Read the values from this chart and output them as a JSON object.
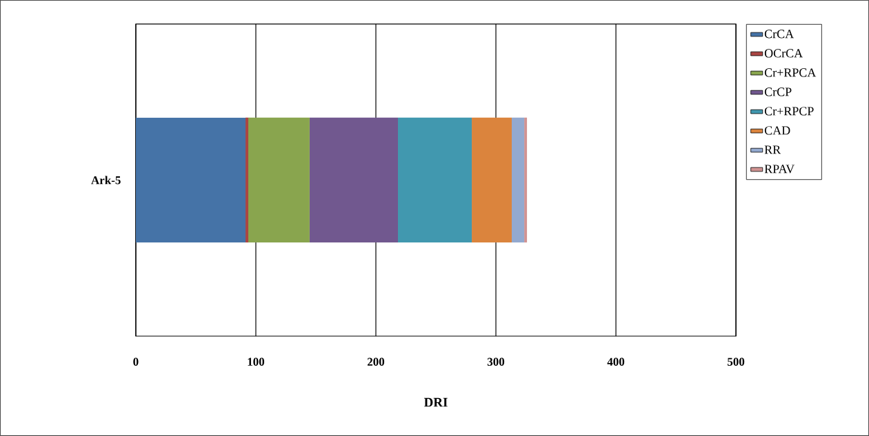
{
  "chart_data": {
    "type": "bar",
    "orientation": "horizontal",
    "stacked": true,
    "categories": [
      "Ark-5"
    ],
    "series": [
      {
        "name": "CrCA",
        "color": "#4573a7",
        "values": [
          91.4
        ]
      },
      {
        "name": "OCrCA",
        "color": "#aa4643",
        "values": [
          2.3
        ]
      },
      {
        "name": "Cr+RPCA",
        "color": "#89a54e",
        "values": [
          51.1
        ]
      },
      {
        "name": "CrCP",
        "color": "#71588f",
        "values": [
          73.6
        ]
      },
      {
        "name": "Cr+RPCP",
        "color": "#4198af",
        "values": [
          61.5
        ]
      },
      {
        "name": "CAD",
        "color": "#db843d",
        "values": [
          33.3
        ]
      },
      {
        "name": "RR",
        "color": "#93a9cf",
        "values": [
          10.4
        ]
      },
      {
        "name": "RPAV",
        "color": "#d19392",
        "values": [
          2.3
        ]
      }
    ],
    "xlabel": "DRI",
    "xlim": [
      0,
      500
    ],
    "xticks": [
      0,
      100,
      200,
      300,
      400,
      500
    ],
    "grid": "x",
    "legend": "right"
  }
}
